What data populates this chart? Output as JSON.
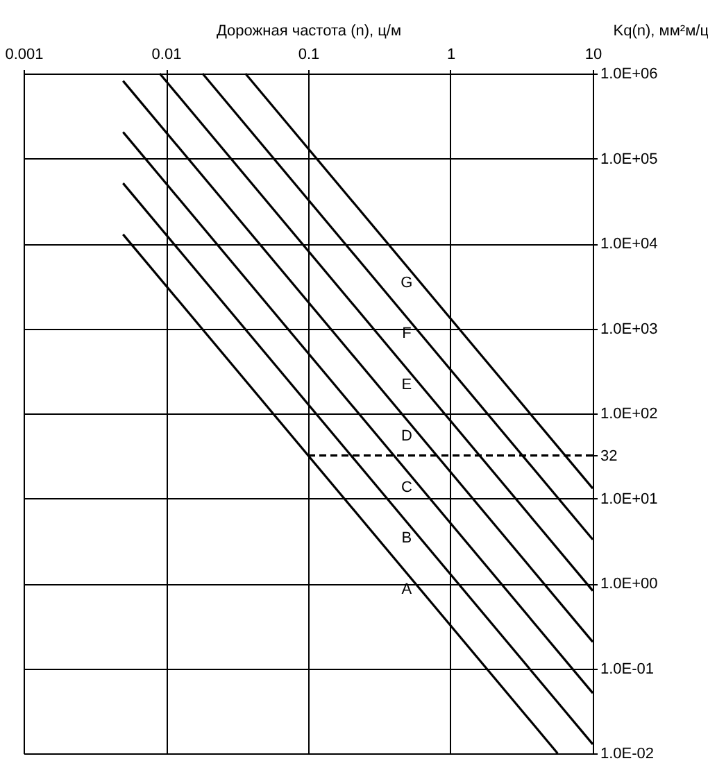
{
  "chart_data": {
    "type": "line",
    "xlabel": "Дорожная частота (n), ц/м",
    "ylabel": "Kq(n), мм²м/ц",
    "log": "xy",
    "grid": true,
    "marker": "none",
    "line_style": "solid",
    "xlim": [
      0.001,
      10
    ],
    "xticks": [
      0.001,
      0.01,
      0.1,
      1,
      10
    ],
    "ylim": [
      0.01,
      1000000
    ],
    "yticks": [
      {
        "value": 0.01,
        "label": "1.0E-02"
      },
      {
        "value": 0.1,
        "label": "1.0E-01"
      },
      {
        "value": 1,
        "label": "1.0E+00"
      },
      {
        "value": 10,
        "label": "1.0E+01"
      },
      32,
      {
        "value": 100,
        "label": "1.0E+02"
      },
      {
        "value": 1000,
        "label": "1.0E+03"
      },
      {
        "value": 10000,
        "label": "1.0E+04"
      },
      {
        "value": 100000,
        "label": "1.0E+05"
      },
      {
        "value": 1000000,
        "label": "1.0E+06"
      }
    ],
    "series": [
      {
        "color": "#000000",
        "x": [
          0.005,
          5.66
        ],
        "values": [
          12800,
          0.01
        ]
      },
      {
        "color": "#000000",
        "x": [
          0.005,
          10
        ],
        "values": [
          51200,
          0.0128
        ]
      },
      {
        "color": "#000000",
        "x": [
          0.005,
          10
        ],
        "values": [
          204800,
          0.0512
        ]
      },
      {
        "color": "#000000",
        "x": [
          0.005,
          10
        ],
        "values": [
          819200,
          0.2048
        ]
      },
      {
        "color": "#000000",
        "x": [
          0.00905,
          10
        ],
        "values": [
          1000000,
          0.8192
        ]
      },
      {
        "color": "#000000",
        "x": [
          0.0181,
          10
        ],
        "values": [
          1000000,
          3.28
        ]
      },
      {
        "color": "#000000",
        "x": [
          0.0362,
          10
        ],
        "values": [
          1000000,
          13.1
        ]
      },
      {
        "color": "#000000",
        "x": [
          0.1,
          10
        ],
        "values": [
          32,
          32
        ],
        "line_style": "dashed"
      }
    ],
    "annotations": [
      "A",
      "B",
      "C",
      "D",
      "E",
      "F",
      "G"
    ]
  }
}
